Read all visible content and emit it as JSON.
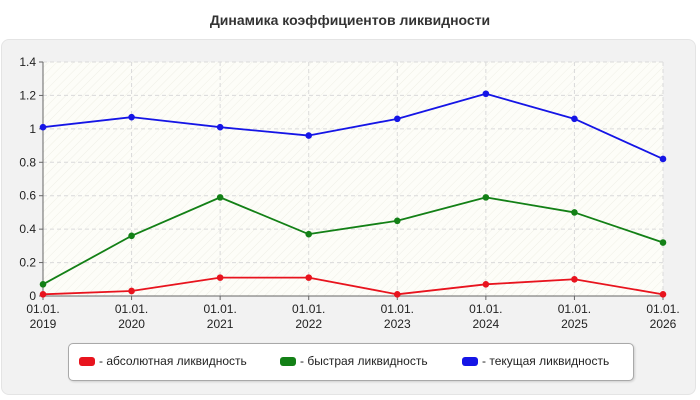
{
  "chart_data": {
    "type": "line",
    "title": "Динамика коэффициентов ликвидности",
    "xlabel": "",
    "ylabel": "",
    "categories": [
      [
        "01.01.",
        "2019"
      ],
      [
        "01.01.",
        "2020"
      ],
      [
        "01.01.",
        "2021"
      ],
      [
        "01.01.",
        "2022"
      ],
      [
        "01.01.",
        "2023"
      ],
      [
        "01.01.",
        "2024"
      ],
      [
        "01.01.",
        "2025"
      ],
      [
        "01.01.",
        "2026"
      ]
    ],
    "y_ticks": [
      "0",
      "0.2",
      "0.4",
      "0.6",
      "0.8",
      "1",
      "1.2",
      "1.4"
    ],
    "ylim": [
      0,
      1.4
    ],
    "grid": true,
    "legend_position": "bottom",
    "series": [
      {
        "name": "- абсолютная ликвидность",
        "color": "#e8141e",
        "values": [
          0.01,
          0.03,
          0.11,
          0.11,
          0.01,
          0.07,
          0.1,
          0.01
        ]
      },
      {
        "name": "- быстрая ликвидность",
        "color": "#138016",
        "values": [
          0.07,
          0.36,
          0.59,
          0.37,
          0.45,
          0.59,
          0.5,
          0.32
        ]
      },
      {
        "name": "- текущая ликвидность",
        "color": "#1515e6",
        "values": [
          1.01,
          1.07,
          1.01,
          0.96,
          1.06,
          1.21,
          1.06,
          0.82
        ]
      }
    ]
  }
}
